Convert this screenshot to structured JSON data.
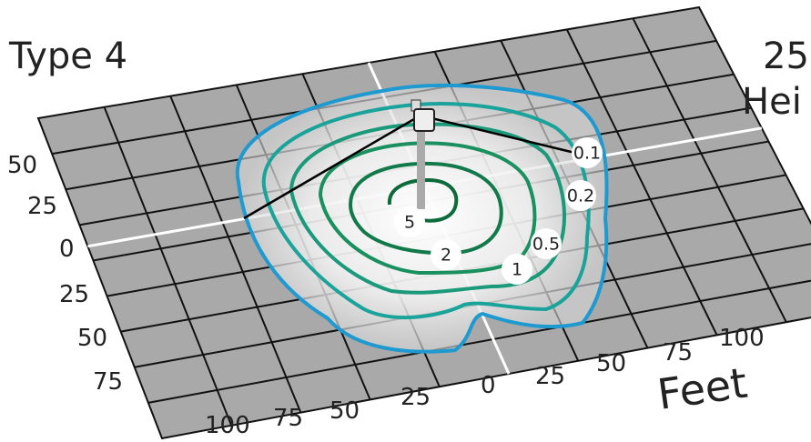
{
  "title": "Type 4",
  "mounting": [
    "25",
    "Hei"
  ],
  "y_labels": [
    "50",
    "25",
    "0",
    "25",
    "50",
    "75"
  ],
  "x_labels": [
    "100",
    "75",
    "50",
    "25",
    "0",
    "25",
    "50",
    "75",
    "100"
  ],
  "axis_label": "Feet",
  "contour_labels": [
    "0.1",
    "0.2",
    "0.5",
    "1",
    "2",
    "5"
  ]
}
